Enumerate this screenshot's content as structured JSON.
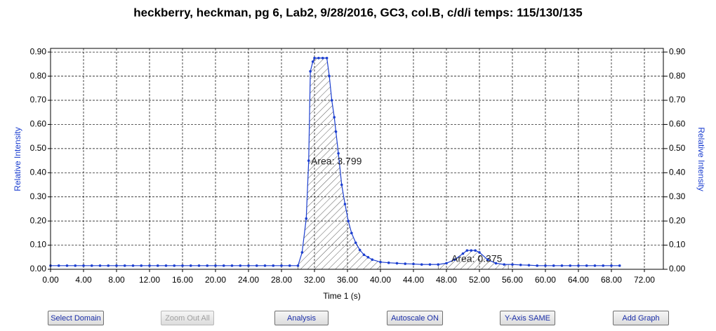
{
  "chart_data": {
    "type": "line",
    "title": "heckberry, heckman, pg 6, Lab2, 9/28/2016, GC3, col.B, c/d/i temps: 115/130/135",
    "xlabel": "Time 1 (s)",
    "ylabel": "Relative Intensity",
    "y2label": "Relative Intensity",
    "color": "#1c3fd0",
    "grid": true,
    "x": [
      0,
      1,
      2,
      3,
      4,
      5,
      6,
      7,
      8,
      9,
      10,
      11,
      12,
      13,
      14,
      15,
      16,
      17,
      18,
      19,
      20,
      21,
      22,
      23,
      24,
      25,
      26,
      27,
      28,
      29,
      30,
      30.5,
      31,
      31.3,
      31.5,
      31.8,
      32,
      32.5,
      33,
      33.5,
      33.8,
      34.1,
      34.4,
      34.6,
      34.9,
      35.3,
      35.7,
      36.1,
      36.5,
      37,
      37.5,
      38,
      38.5,
      39,
      40,
      41,
      42,
      43,
      44,
      45,
      46,
      47,
      48,
      49,
      50,
      50.5,
      51,
      51.5,
      52,
      53,
      54,
      55,
      56,
      57,
      58,
      59,
      60,
      61,
      62,
      63,
      64,
      65,
      66,
      67,
      68,
      69
    ],
    "values": [
      0.015,
      0.015,
      0.015,
      0.015,
      0.015,
      0.015,
      0.015,
      0.015,
      0.015,
      0.015,
      0.015,
      0.015,
      0.015,
      0.015,
      0.015,
      0.015,
      0.015,
      0.015,
      0.015,
      0.015,
      0.015,
      0.015,
      0.015,
      0.015,
      0.015,
      0.015,
      0.015,
      0.015,
      0.015,
      0.015,
      0.015,
      0.07,
      0.21,
      0.45,
      0.82,
      0.86,
      0.875,
      0.875,
      0.875,
      0.875,
      0.8,
      0.7,
      0.63,
      0.57,
      0.48,
      0.35,
      0.27,
      0.2,
      0.15,
      0.11,
      0.08,
      0.06,
      0.05,
      0.04,
      0.03,
      0.027,
      0.025,
      0.023,
      0.022,
      0.02,
      0.02,
      0.02,
      0.025,
      0.04,
      0.065,
      0.078,
      0.078,
      0.078,
      0.07,
      0.04,
      0.025,
      0.02,
      0.02,
      0.018,
      0.017,
      0.015,
      0.015,
      0.015,
      0.015,
      0.015,
      0.015,
      0.015,
      0.015,
      0.015,
      0.015,
      0.015
    ],
    "areas": [
      {
        "label": "Area: 3.799",
        "start": 30,
        "end": 40
      },
      {
        "label": "Area: 0.375",
        "start": 47,
        "end": 55.5
      }
    ],
    "xlim": [
      0,
      74.3
    ],
    "ylim": [
      0,
      0.915
    ],
    "xticks": [
      {
        "value": 0,
        "label": "0.00"
      },
      {
        "value": 4,
        "label": "4.00"
      },
      {
        "value": 8,
        "label": "8.00"
      },
      {
        "value": 12,
        "label": "12.00"
      },
      {
        "value": 16,
        "label": "16.00"
      },
      {
        "value": 20,
        "label": "20.00"
      },
      {
        "value": 24,
        "label": "24.00"
      },
      {
        "value": 28,
        "label": "28.00"
      },
      {
        "value": 32,
        "label": "32.00"
      },
      {
        "value": 36,
        "label": "36.00"
      },
      {
        "value": 40,
        "label": "40.00"
      },
      {
        "value": 44,
        "label": "44.00"
      },
      {
        "value": 48,
        "label": "48.00"
      },
      {
        "value": 52,
        "label": "52.00"
      },
      {
        "value": 56,
        "label": "56.00"
      },
      {
        "value": 60,
        "label": "60.00"
      },
      {
        "value": 64,
        "label": "64.00"
      },
      {
        "value": 68,
        "label": "68.00"
      },
      {
        "value": 72,
        "label": "72.00"
      }
    ],
    "yticks": [
      {
        "value": 0,
        "label": "0.00"
      },
      {
        "value": 0.1,
        "label": "0.10"
      },
      {
        "value": 0.2,
        "label": "0.20"
      },
      {
        "value": 0.3,
        "label": "0.30"
      },
      {
        "value": 0.4,
        "label": "0.40"
      },
      {
        "value": 0.5,
        "label": "0.50"
      },
      {
        "value": 0.6,
        "label": "0.60"
      },
      {
        "value": 0.7,
        "label": "0.70"
      },
      {
        "value": 0.8,
        "label": "0.80"
      },
      {
        "value": 0.9,
        "label": "0.90"
      }
    ]
  },
  "buttons": [
    {
      "label": "Select Domain",
      "enabled": true
    },
    {
      "label": "Zoom Out All",
      "enabled": false
    },
    {
      "label": "Analysis",
      "enabled": true
    },
    {
      "label": "Autoscale ON",
      "enabled": true
    },
    {
      "label": "Y-Axis SAME",
      "enabled": true
    },
    {
      "label": "Add Graph",
      "enabled": true
    }
  ]
}
